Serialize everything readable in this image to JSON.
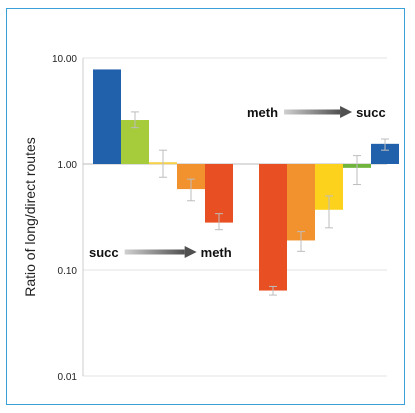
{
  "chart_data": {
    "type": "bar",
    "scale": "log",
    "ylabel": "Ratio of long/direct routes",
    "ylim": [
      0.01,
      10
    ],
    "baseline": 1,
    "y_ticks": [
      {
        "value": 10,
        "label": "10.00"
      },
      {
        "value": 1,
        "label": "1.00"
      },
      {
        "value": 0.1,
        "label": "0.10"
      },
      {
        "value": 0.01,
        "label": "0.01"
      }
    ],
    "grid": true,
    "groups": [
      {
        "annotation": {
          "from": "succ",
          "to": "meth"
        },
        "bars": [
          {
            "value": 7.8,
            "error": [
              null,
              null
            ],
            "color": "#2160aa"
          },
          {
            "value": 2.6,
            "error": [
              2.2,
              3.1
            ],
            "color": "#a6cc3c"
          },
          {
            "value": 1.04,
            "error": [
              0.75,
              1.35
            ],
            "color": "#f5d24a"
          },
          {
            "value": 0.58,
            "error": [
              0.45,
              0.72
            ],
            "color": "#f2922e"
          },
          {
            "value": 0.28,
            "error": [
              0.24,
              0.34
            ],
            "color": "#e84f22"
          }
        ]
      },
      {
        "annotation": {
          "from": "meth",
          "to": "succ"
        },
        "bars": [
          {
            "value": 0.064,
            "error": [
              0.058,
              0.07
            ],
            "color": "#e84f22"
          },
          {
            "value": 0.19,
            "error": [
              0.15,
              0.23
            ],
            "color": "#f2922e"
          },
          {
            "value": 0.37,
            "error": [
              0.25,
              0.5
            ],
            "color": "#fdd21c"
          },
          {
            "value": 0.92,
            "error": [
              0.64,
              1.2
            ],
            "color": "#6fb43b"
          },
          {
            "value": 1.55,
            "error": [
              1.35,
              1.72
            ],
            "color": "#2160aa"
          }
        ]
      }
    ]
  }
}
